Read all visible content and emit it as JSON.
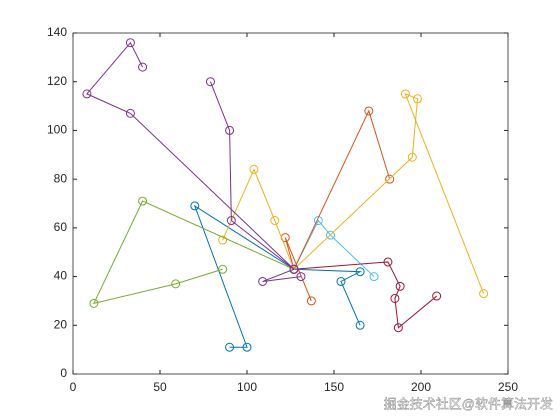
{
  "chart_data": {
    "type": "line",
    "xlim": [
      0,
      250
    ],
    "xticks": [
      0,
      50,
      100,
      150,
      200,
      250
    ],
    "ylim": [
      0,
      140
    ],
    "yticks": [
      0,
      20,
      40,
      60,
      80,
      100,
      120,
      140
    ],
    "marker": "circle",
    "series": [
      {
        "color": "#0072BD",
        "x": [
          127,
          70,
          100,
          90
        ],
        "values": [
          43,
          69,
          11,
          11
        ]
      },
      {
        "color": "#D95319",
        "x": [
          127,
          122,
          137
        ],
        "values": [
          43,
          56,
          30
        ]
      },
      {
        "color": "#EDB120",
        "x": [
          127,
          116,
          104,
          86
        ],
        "values": [
          43,
          63,
          84,
          55
        ]
      },
      {
        "color": "#7E2F8E",
        "x": [
          127,
          33,
          8,
          33,
          40
        ],
        "values": [
          43,
          107,
          115,
          136,
          126
        ]
      },
      {
        "color": "#77AC30",
        "x": [
          127,
          40,
          12,
          59,
          86
        ],
        "values": [
          43,
          71,
          29,
          37,
          43
        ]
      },
      {
        "color": "#4DBEEE",
        "x": [
          127,
          141,
          148,
          173
        ],
        "values": [
          43,
          63,
          57,
          40
        ]
      },
      {
        "color": "#A2142F",
        "x": [
          127,
          181,
          188,
          185,
          187,
          209
        ],
        "values": [
          43,
          46,
          36,
          31,
          19,
          32
        ]
      },
      {
        "color": "#0072BD",
        "x": [
          127,
          165,
          154,
          165
        ],
        "values": [
          43,
          42,
          38,
          20
        ]
      },
      {
        "color": "#D95319",
        "x": [
          127,
          170,
          182
        ],
        "values": [
          43,
          108,
          80
        ]
      },
      {
        "color": "#EDB120",
        "x": [
          127,
          195,
          198,
          191,
          236
        ],
        "values": [
          43,
          89,
          113,
          115,
          33
        ]
      },
      {
        "color": "#7E2F8E",
        "x": [
          127,
          91,
          90,
          79
        ],
        "values": [
          43,
          63,
          100,
          120
        ]
      },
      {
        "color": "#7E2F8E",
        "x": [
          127,
          109,
          131
        ],
        "values": [
          43,
          38,
          40
        ]
      }
    ]
  },
  "watermark": "掘金技术社区@软件算法开发"
}
